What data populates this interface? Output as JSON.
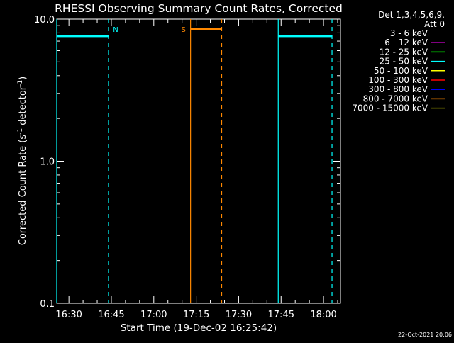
{
  "chart_data": {
    "type": "line",
    "title": "RHESSI Observing Summary Count Rates, Corrected",
    "xlabel": "Start Time (19-Dec-02 16:25:42)",
    "ylabel_main": "Corrected Count Rate (s",
    "ylabel_sup1": "-1",
    "ylabel_mid": " detector",
    "ylabel_sup2": "-1",
    "ylabel_end": ")",
    "yscale": "log",
    "ylim": [
      0.1,
      10.0
    ],
    "xlim": [
      "16:25:42",
      "18:06:00"
    ],
    "x_ticks": [
      "16:30",
      "16:45",
      "17:00",
      "17:15",
      "17:30",
      "17:45",
      "18:00"
    ],
    "y_ticks": [
      "10.0",
      "1.0",
      "0.1"
    ],
    "legend": {
      "placement": "top-right outside",
      "header_line1": "Det 1,3,4,5,6,9,",
      "header_line2": "Att 0",
      "entries": [
        {
          "label": "3 - 6 keV",
          "color": "#000000"
        },
        {
          "label": "6 - 12 keV",
          "color": "#ff00ff"
        },
        {
          "label": "12 - 25 keV",
          "color": "#00ff00"
        },
        {
          "label": "25 - 50 keV",
          "color": "#00ffff"
        },
        {
          "label": "50 - 100 keV",
          "color": "#ffff00"
        },
        {
          "label": "100 - 300 keV",
          "color": "#ff0000"
        },
        {
          "label": "300 - 800 keV",
          "color": "#0000ff"
        },
        {
          "label": "800 - 7000 keV",
          "color": "#ff8800"
        },
        {
          "label": "7000 - 15000 keV",
          "color": "#888800"
        }
      ]
    },
    "flag_bars": [
      {
        "start": "16:25:42",
        "end": "16:44:00",
        "value": 7.6,
        "color": "#00ffff"
      },
      {
        "start": "17:13:00",
        "end": "17:24:00",
        "value": 8.5,
        "color": "#ff8800"
      },
      {
        "start": "17:44:00",
        "end": "18:03:00",
        "value": 7.6,
        "color": "#00ffff"
      }
    ],
    "markers": [
      {
        "time": "16:25:42",
        "style": "solid",
        "color": "#00ffff"
      },
      {
        "time": "16:44:00",
        "style": "dashed",
        "color": "#00ffff",
        "label": "N"
      },
      {
        "time": "17:13:00",
        "style": "solid",
        "color": "#ff8800",
        "label": "S"
      },
      {
        "time": "17:24:00",
        "style": "dashed",
        "color": "#ff8800"
      },
      {
        "time": "17:44:00",
        "style": "solid",
        "color": "#00ffff"
      },
      {
        "time": "18:03:00",
        "style": "dashed",
        "color": "#00ffff"
      }
    ]
  },
  "footer": {
    "timestamp": "22-Oct-2021 20:06"
  }
}
